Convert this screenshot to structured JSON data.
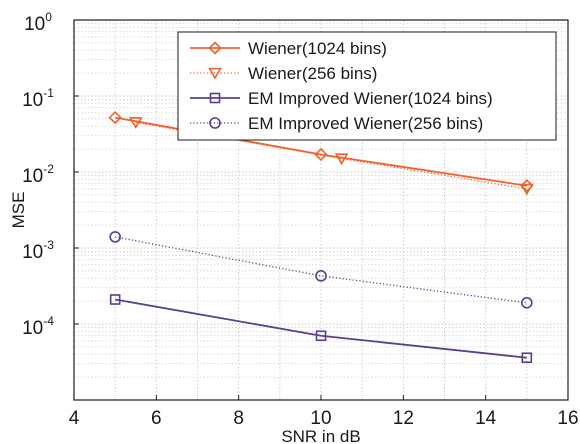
{
  "chart_data": {
    "type": "line",
    "xlabel": "SNR in dB",
    "ylabel": "MSE",
    "xlim": [
      4,
      16
    ],
    "ylim": [
      1e-05,
      1
    ],
    "yscale": "log",
    "xticks": [
      "4",
      "6",
      "8",
      "10",
      "12",
      "14",
      "16"
    ],
    "yticks": [
      {
        "base": "10",
        "exp": "0"
      },
      {
        "base": "10",
        "exp": "-1"
      },
      {
        "base": "10",
        "exp": "-2"
      },
      {
        "base": "10",
        "exp": "-3"
      },
      {
        "base": "10",
        "exp": "-4"
      }
    ],
    "grid": true,
    "legend_position": "top-right",
    "series": [
      {
        "name": "Wiener(1024 bins)",
        "color": "#f0622d",
        "line": "solid",
        "marker": "diamond",
        "x": [
          5,
          10,
          15
        ],
        "y": [
          0.052,
          0.017,
          0.0066
        ]
      },
      {
        "name": "Wiener(256 bins)",
        "color": "#f0622d",
        "line": "dotted",
        "marker": "triangle-down",
        "x": [
          5.5,
          10.5,
          15
        ],
        "y": [
          0.045,
          0.015,
          0.006
        ]
      },
      {
        "name": "EM Improved Wiener(1024 bins)",
        "color": "#5b3f8c",
        "line": "solid",
        "marker": "square",
        "x": [
          5,
          10,
          15
        ],
        "y": [
          0.00021,
          7e-05,
          3.6e-05
        ]
      },
      {
        "name": "EM Improved Wiener(256 bins)",
        "color": "#5b3f8c",
        "line": "dotted",
        "marker": "circle",
        "x": [
          5,
          10,
          15
        ],
        "y": [
          0.0014,
          0.00043,
          0.00019
        ]
      }
    ]
  }
}
